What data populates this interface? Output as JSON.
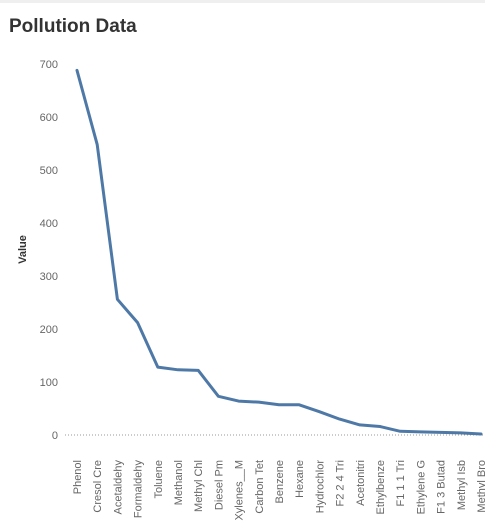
{
  "title": "Pollution Data",
  "colors": {
    "line": "#4e79a7",
    "zero_line": "#9a9a9a",
    "text": "#666666",
    "title": "#333333"
  },
  "chart_data": {
    "type": "line",
    "title": "Pollution Data",
    "xlabel": "",
    "ylabel": "Value",
    "ylim": [
      0,
      720
    ],
    "yticks": [
      0,
      100,
      200,
      300,
      400,
      500,
      600,
      700
    ],
    "grid": false,
    "categories": [
      "Phenol",
      "Cresol Cre",
      "Acetaldehy",
      "Formaldehy",
      "Toluene",
      "Methanol",
      "Methyl Chl",
      "Diesel Pm",
      "Xylenes__M",
      "Carbon Tet",
      "Benzene",
      "Hexane",
      "Hydrochlor",
      "F2 2 4 Tri",
      "Acetonitri",
      "Ethylbenze",
      "F1 1 1 Tri",
      "Ethylene G",
      "F1 3 Butad",
      "Methyl Isb",
      "Methyl Bro"
    ],
    "series": [
      {
        "values": [
          688,
          548,
          256,
          212,
          128,
          123,
          122,
          73,
          64,
          62,
          57,
          57,
          44,
          30,
          19,
          16,
          7,
          6,
          5,
          4,
          2
        ]
      }
    ]
  }
}
